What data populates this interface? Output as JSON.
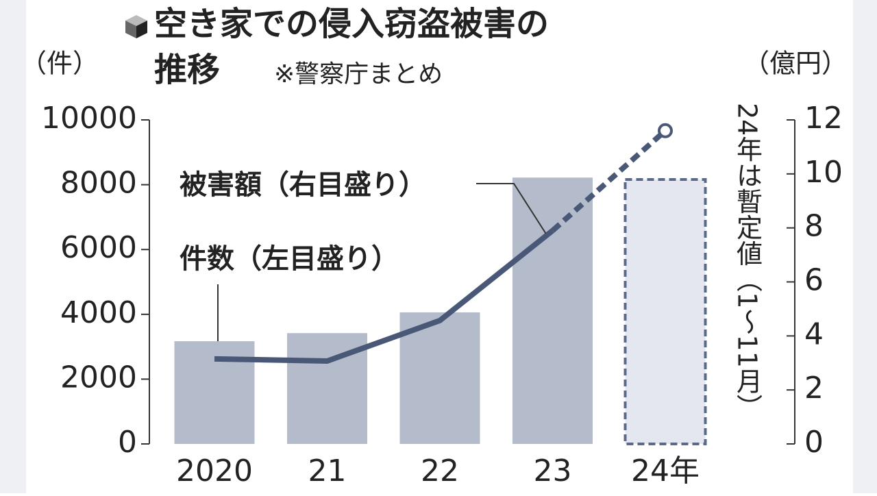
{
  "chart_data": {
    "type": "bar-line",
    "title": [
      "空き家での侵入窃盗被害の",
      "推移"
    ],
    "subtitle": "※警察庁まとめ",
    "y_label": "（件）",
    "y2_label": "（億円）",
    "annotation": "24年は暫定値（1～11月）",
    "categories": [
      "2020",
      "21",
      "22",
      "23",
      "24年"
    ],
    "provisional": [
      false,
      false,
      false,
      false,
      true
    ],
    "series": [
      {
        "name": "件数（左目盛り）",
        "type": "bar",
        "axis": "y",
        "color": "#b4bccb",
        "values": [
          3170,
          3420,
          4060,
          8220,
          8160
        ]
      },
      {
        "name": "被害額（右目盛り）",
        "type": "line",
        "axis": "y2",
        "color": "#4a5878",
        "values": [
          3.15,
          3.07,
          4.57,
          7.9,
          11.6
        ]
      }
    ],
    "ylim": [
      0,
      10000
    ],
    "yticks": [
      0,
      2000,
      4000,
      6000,
      8000,
      10000
    ],
    "y2lim": [
      0,
      12
    ],
    "y2ticks": [
      0,
      2,
      4,
      6,
      8,
      10,
      12
    ]
  }
}
